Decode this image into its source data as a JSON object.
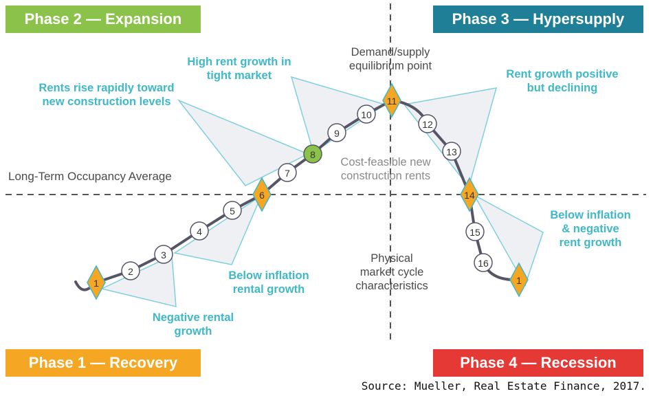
{
  "phases": {
    "p1": {
      "label": "Phase 1 — Recovery",
      "color": "#f5a623"
    },
    "p2": {
      "label": "Phase 2 — Expansion",
      "color": "#8bc34a"
    },
    "p3": {
      "label": "Phase 3 — Hypersupply",
      "color": "#1f7f96"
    },
    "p4": {
      "label": "Phase 4 — Recession",
      "color": "#e53935"
    }
  },
  "annotations": {
    "rents_rise": "Rents rise rapidly toward\nnew construction levels",
    "high_rent": "High rent growth in\ntight market",
    "equilibrium": "Demand/supply\nequilibrium point",
    "rent_positive": "Rent growth positive\nbut declining",
    "long_term": "Long-Term Occupancy Average",
    "cost_feasible": "Cost-feasible new\nconstruction rents",
    "below_inflation_rental": "Below inflation\nrental growth",
    "physical": "Physical\nmarket cycle\ncharacteristics",
    "below_inflation_negative": "Below inflation\n& negative\nrent growth",
    "negative_rental": "Negative rental\ngrowth"
  },
  "cycle_points": [
    "1",
    "2",
    "3",
    "4",
    "5",
    "6",
    "7",
    "8",
    "9",
    "10",
    "11",
    "12",
    "13",
    "14",
    "15",
    "16",
    "1"
  ],
  "marker_styles": {
    "diamond_points": [
      "1",
      "6",
      "11",
      "14"
    ],
    "highlight_point": "8",
    "diamond_color": "#f5a623",
    "highlight_color": "#8bc34a",
    "teal_color": "#3fb8c8",
    "curve_color": "#555566"
  },
  "source": "Source: Mueller, Real Estate Finance, 2017."
}
